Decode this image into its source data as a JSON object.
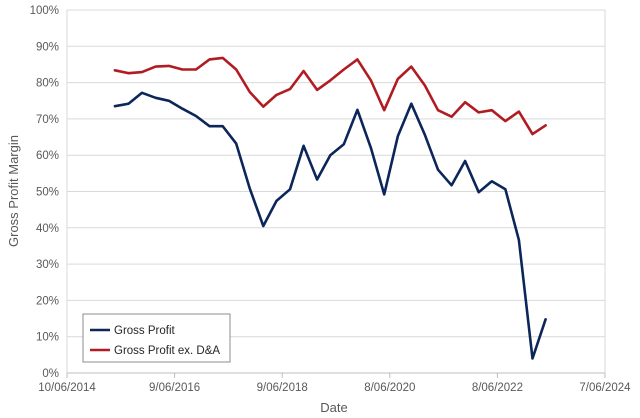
{
  "chart_data": {
    "type": "line",
    "xlabel": "Date",
    "ylabel": "Gross Profit Margin",
    "x_ticks": [
      "10/06/2014",
      "9/06/2016",
      "9/06/2018",
      "8/06/2020",
      "8/06/2022",
      "7/06/2024"
    ],
    "y_ticks": [
      "0%",
      "10%",
      "20%",
      "30%",
      "40%",
      "50%",
      "60%",
      "70%",
      "80%",
      "90%",
      "100%"
    ],
    "xlim": [
      "2014-06-10",
      "2024-06-07"
    ],
    "ylim": [
      0,
      100
    ],
    "grid": "horizontal",
    "legend_position": "bottom-left",
    "series": [
      {
        "name": "Gross Profit",
        "color": "#0d2659",
        "points": [
          {
            "x": "2015-05-01",
            "y": 73.5
          },
          {
            "x": "2015-08-01",
            "y": 74.2
          },
          {
            "x": "2015-11-01",
            "y": 77.2
          },
          {
            "x": "2016-02-01",
            "y": 75.8
          },
          {
            "x": "2016-05-01",
            "y": 75.0
          },
          {
            "x": "2016-08-01",
            "y": 72.8
          },
          {
            "x": "2016-11-01",
            "y": 70.8
          },
          {
            "x": "2017-02-01",
            "y": 68.0
          },
          {
            "x": "2017-05-01",
            "y": 68.0
          },
          {
            "x": "2017-08-01",
            "y": 63.2
          },
          {
            "x": "2017-11-01",
            "y": 50.8
          },
          {
            "x": "2018-02-01",
            "y": 40.5
          },
          {
            "x": "2018-05-01",
            "y": 47.4
          },
          {
            "x": "2018-08-01",
            "y": 50.6
          },
          {
            "x": "2018-11-01",
            "y": 62.6
          },
          {
            "x": "2019-02-01",
            "y": 53.3
          },
          {
            "x": "2019-05-01",
            "y": 60.0
          },
          {
            "x": "2019-08-01",
            "y": 63.0
          },
          {
            "x": "2019-11-01",
            "y": 72.5
          },
          {
            "x": "2020-02-01",
            "y": 62.0
          },
          {
            "x": "2020-05-01",
            "y": 49.2
          },
          {
            "x": "2020-08-01",
            "y": 65.2
          },
          {
            "x": "2020-11-01",
            "y": 74.2
          },
          {
            "x": "2021-02-01",
            "y": 65.6
          },
          {
            "x": "2021-05-01",
            "y": 56.0
          },
          {
            "x": "2021-08-01",
            "y": 51.7
          },
          {
            "x": "2021-11-01",
            "y": 58.4
          },
          {
            "x": "2022-02-01",
            "y": 49.8
          },
          {
            "x": "2022-05-01",
            "y": 52.8
          },
          {
            "x": "2022-08-01",
            "y": 50.6
          },
          {
            "x": "2022-11-01",
            "y": 36.6
          },
          {
            "x": "2023-02-01",
            "y": 4.0
          },
          {
            "x": "2023-05-01",
            "y": 14.8
          }
        ]
      },
      {
        "name": "Gross Profit ex. D&A",
        "color": "#b01c22",
        "points": [
          {
            "x": "2015-05-01",
            "y": 83.4
          },
          {
            "x": "2015-08-01",
            "y": 82.6
          },
          {
            "x": "2015-11-01",
            "y": 82.9
          },
          {
            "x": "2016-02-01",
            "y": 84.4
          },
          {
            "x": "2016-05-01",
            "y": 84.6
          },
          {
            "x": "2016-08-01",
            "y": 83.6
          },
          {
            "x": "2016-11-01",
            "y": 83.6
          },
          {
            "x": "2017-02-01",
            "y": 86.4
          },
          {
            "x": "2017-05-01",
            "y": 86.8
          },
          {
            "x": "2017-08-01",
            "y": 83.6
          },
          {
            "x": "2017-11-01",
            "y": 77.4
          },
          {
            "x": "2018-02-01",
            "y": 73.4
          },
          {
            "x": "2018-05-01",
            "y": 76.6
          },
          {
            "x": "2018-08-01",
            "y": 78.2
          },
          {
            "x": "2018-11-01",
            "y": 83.2
          },
          {
            "x": "2019-02-01",
            "y": 78.0
          },
          {
            "x": "2019-05-01",
            "y": 80.6
          },
          {
            "x": "2019-08-01",
            "y": 83.6
          },
          {
            "x": "2019-11-01",
            "y": 86.4
          },
          {
            "x": "2020-02-01",
            "y": 80.6
          },
          {
            "x": "2020-05-01",
            "y": 72.4
          },
          {
            "x": "2020-08-01",
            "y": 81.0
          },
          {
            "x": "2020-11-01",
            "y": 84.4
          },
          {
            "x": "2021-02-01",
            "y": 79.2
          },
          {
            "x": "2021-05-01",
            "y": 72.4
          },
          {
            "x": "2021-08-01",
            "y": 70.6
          },
          {
            "x": "2021-11-01",
            "y": 74.6
          },
          {
            "x": "2022-02-01",
            "y": 71.8
          },
          {
            "x": "2022-05-01",
            "y": 72.4
          },
          {
            "x": "2022-08-01",
            "y": 69.4
          },
          {
            "x": "2022-11-01",
            "y": 72.0
          },
          {
            "x": "2023-02-01",
            "y": 65.8
          },
          {
            "x": "2023-05-01",
            "y": 68.2
          }
        ]
      }
    ]
  }
}
